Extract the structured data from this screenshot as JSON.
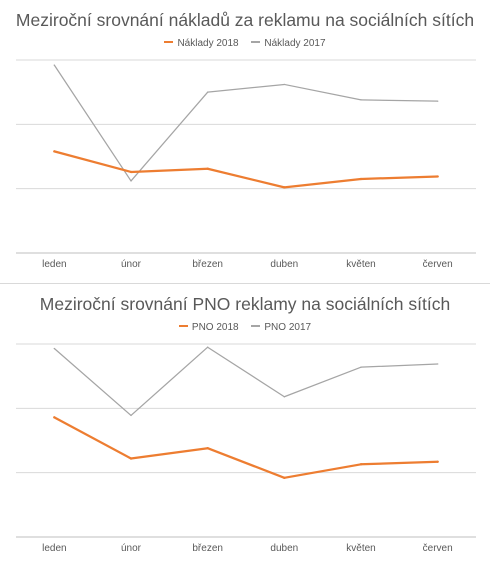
{
  "chart_data": [
    {
      "type": "line",
      "title": "Meziroční srovnání nákladů za reklamu na sociálních sítích",
      "categories": [
        "leden",
        "únor",
        "březen",
        "duben",
        "květen",
        "červen"
      ],
      "series": [
        {
          "name": "Náklady 2018",
          "color": "#ED7D31",
          "values": [
            1.58,
            1.26,
            1.31,
            1.02,
            1.15,
            1.19
          ]
        },
        {
          "name": "Náklady 2017",
          "color": "#A5A5A5",
          "values": [
            2.92,
            1.12,
            2.5,
            2.62,
            2.38,
            2.36
          ]
        }
      ],
      "ylim": [
        0,
        3
      ],
      "grid": true,
      "legend": "top"
    },
    {
      "type": "line",
      "title": "Meziroční srovnání PNO reklamy na sociálních sítích",
      "categories": [
        "leden",
        "únor",
        "březen",
        "duben",
        "květen",
        "červen"
      ],
      "series": [
        {
          "name": "PNO 2018",
          "color": "#ED7D31",
          "values": [
            1.86,
            1.22,
            1.38,
            0.92,
            1.13,
            1.17
          ]
        },
        {
          "name": "PNO 2017",
          "color": "#A5A5A5",
          "values": [
            2.93,
            1.89,
            2.95,
            2.18,
            2.64,
            2.69
          ]
        }
      ],
      "ylim": [
        0,
        3
      ],
      "grid": true,
      "legend": "top"
    }
  ]
}
